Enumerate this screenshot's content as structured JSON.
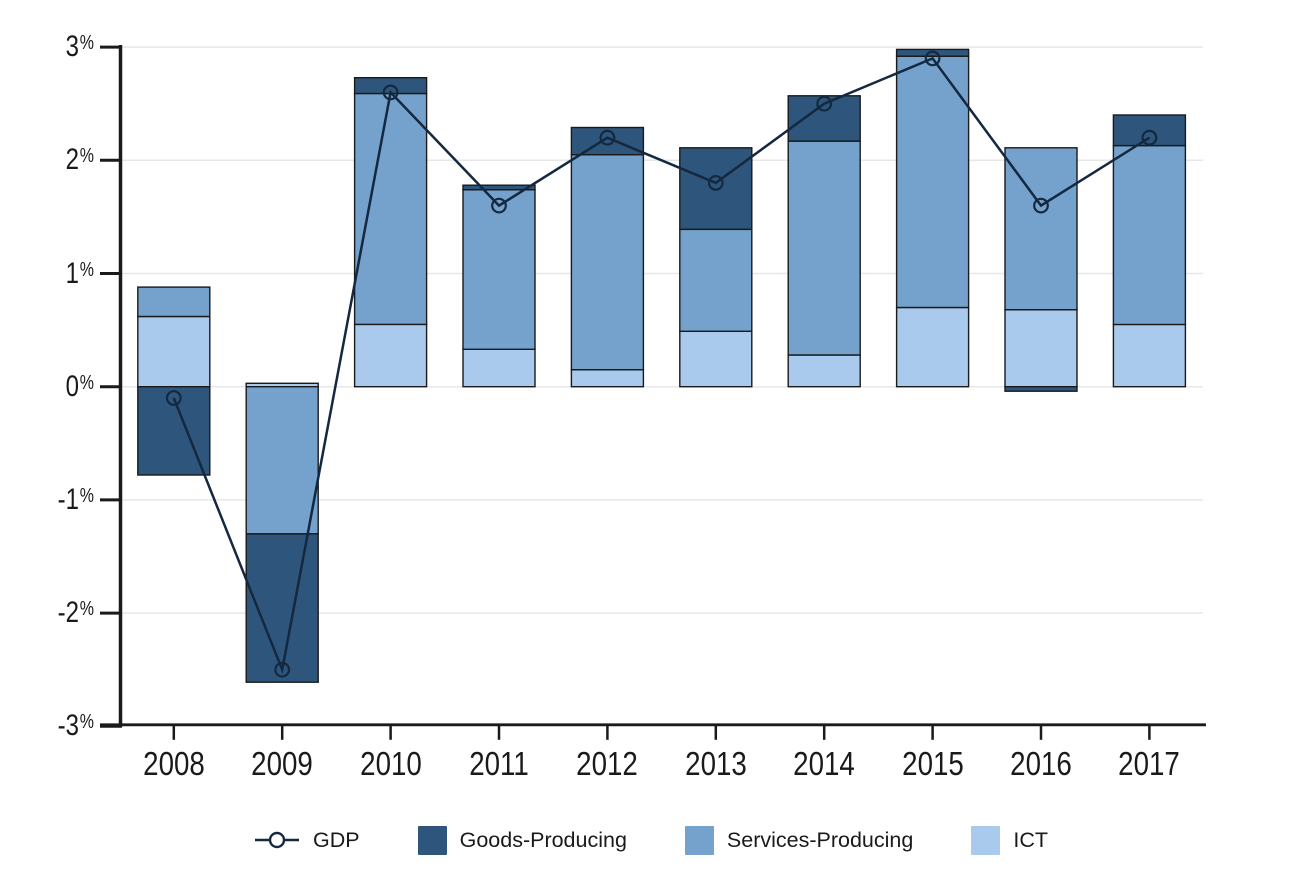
{
  "chart_data": {
    "type": "bar",
    "subtype": "stacked-bars-with-line-overlay",
    "categories": [
      "2008",
      "2009",
      "2010",
      "2011",
      "2012",
      "2013",
      "2014",
      "2015",
      "2016",
      "2017"
    ],
    "series": [
      {
        "name": "GDP",
        "type": "line",
        "marker": "open-circle",
        "color": "#14283F",
        "values": [
          -0.1,
          -2.5,
          2.6,
          1.6,
          2.2,
          1.8,
          2.5,
          2.9,
          1.6,
          2.2
        ]
      },
      {
        "name": "Goods-Producing",
        "type": "bar",
        "color": "#2E567C",
        "values": [
          -0.78,
          -1.31,
          0.14,
          0.04,
          0.24,
          0.72,
          0.4,
          0.06,
          -0.04,
          0.27
        ]
      },
      {
        "name": "Services-Producing",
        "type": "bar",
        "color": "#74A2CC",
        "values": [
          0.26,
          -1.3,
          2.04,
          1.41,
          1.9,
          0.9,
          1.89,
          2.22,
          1.43,
          1.58
        ]
      },
      {
        "name": "ICT",
        "type": "bar",
        "color": "#A9C9ED",
        "values": [
          0.62,
          0.03,
          0.55,
          0.33,
          0.15,
          0.49,
          0.28,
          0.7,
          0.68,
          0.55
        ]
      }
    ],
    "stack_order_from_zero": [
      "ICT",
      "Services-Producing",
      "Goods-Producing"
    ],
    "title": "",
    "xlabel": "",
    "ylabel": "",
    "ylim": [
      -3,
      3
    ],
    "y_ticks": [
      {
        "value": 3,
        "label": "3%"
      },
      {
        "value": 2,
        "label": "2%"
      },
      {
        "value": 1,
        "label": "1%"
      },
      {
        "value": 0,
        "label": "0%"
      },
      {
        "value": -1,
        "label": "-1%"
      },
      {
        "value": -2,
        "label": "-2%"
      },
      {
        "value": -3,
        "label": "-3%"
      }
    ],
    "grid": true,
    "gridline_color": "#E7E7E7",
    "axis_color": "#1A1A1A",
    "bar_outline_color": "#1A1A1A",
    "legend_position": "bottom"
  }
}
